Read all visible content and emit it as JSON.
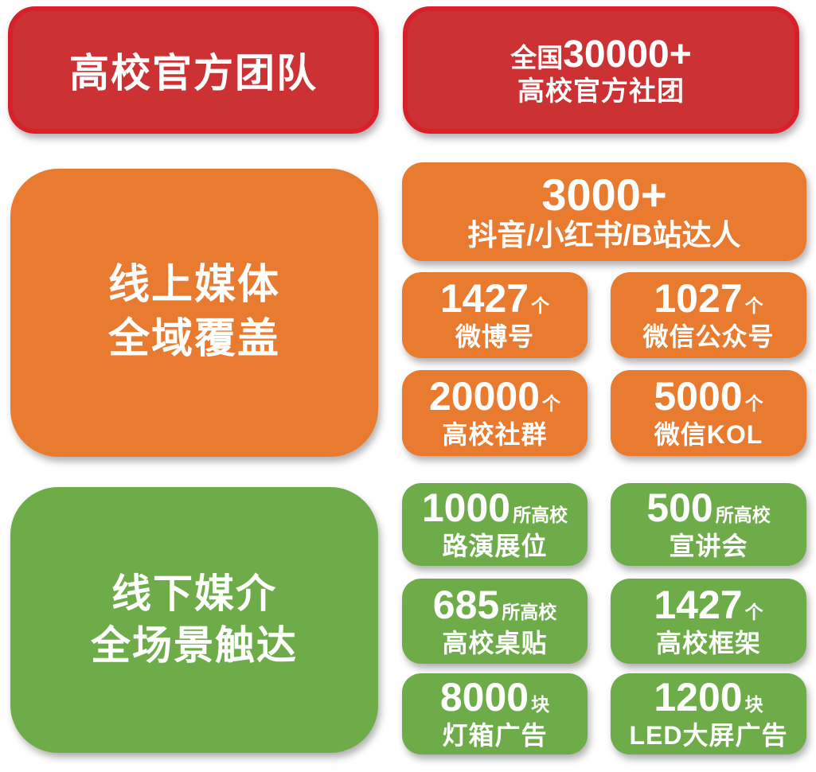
{
  "colors": {
    "background": "#ffffff",
    "red_fill": "#cc3133",
    "red_border": "#d8202b",
    "orange": "#e87b2f",
    "green": "#6eac49",
    "text": "#ffffff"
  },
  "sections": {
    "official": {
      "title": "高校官方团队",
      "stat": {
        "prefix": "全国",
        "number": "30000+",
        "label": "高校官方社团"
      }
    },
    "online": {
      "title_line1": "线上媒体",
      "title_line2": "全域覆盖",
      "headline": {
        "number": "3000+",
        "label": "抖音/小红书/B站达人"
      },
      "stats": [
        {
          "number": "1427",
          "unit": "个",
          "label": "微博号"
        },
        {
          "number": "1027",
          "unit": "个",
          "label": "微信公众号"
        },
        {
          "number": "20000",
          "unit": "个",
          "label": "高校社群"
        },
        {
          "number": "5000",
          "unit": "个",
          "label": "微信KOL"
        }
      ]
    },
    "offline": {
      "title_line1": "线下媒介",
      "title_line2": "全场景触达",
      "stats": [
        {
          "number": "1000",
          "unit": "所高校",
          "label": "路演展位"
        },
        {
          "number": "500",
          "unit": "所高校",
          "label": "宣讲会"
        },
        {
          "number": "685",
          "unit": "所高校",
          "label": "高校桌贴"
        },
        {
          "number": "1427",
          "unit": "个",
          "label": "高校框架"
        },
        {
          "number": "8000",
          "unit": "块",
          "label": "灯箱广告"
        },
        {
          "number": "1200",
          "unit": "块",
          "label": "LED大屏广告"
        }
      ]
    }
  }
}
